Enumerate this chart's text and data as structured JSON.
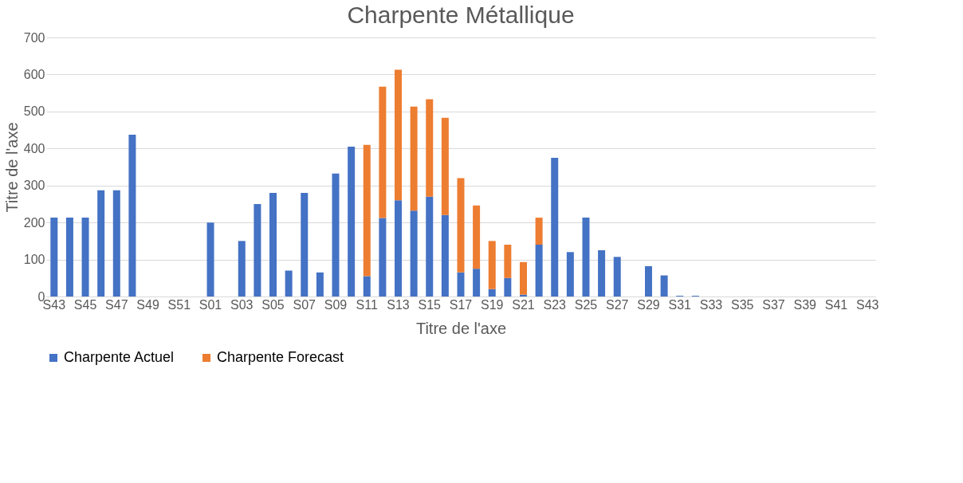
{
  "chart_data": {
    "type": "bar",
    "title": "Charpente Métallique",
    "xlabel": "Titre de l'axe",
    "ylabel": "Titre de l'axe",
    "categories": [
      "S43",
      null,
      "S45",
      null,
      "S47",
      null,
      "S49",
      null,
      "S51",
      null,
      "S01",
      null,
      "S03",
      null,
      "S05",
      null,
      "S07",
      null,
      "S09",
      null,
      "S11",
      null,
      "S13",
      null,
      "S15",
      null,
      "S17",
      null,
      "S19",
      null,
      "S21",
      null,
      "S23",
      null,
      "S25",
      null,
      "S27",
      null,
      "S29",
      null,
      "S31",
      null,
      "S33",
      null,
      "S35",
      null,
      "S37",
      null,
      "S39",
      null,
      "S41",
      null,
      "S43"
    ],
    "series": [
      {
        "name": "Charpente Actuel",
        "color": "#4472c4",
        "values": [
          213,
          213,
          213,
          287,
          287,
          437,
          null,
          null,
          null,
          null,
          200,
          null,
          150,
          250,
          280,
          70,
          280,
          65,
          332,
          405,
          55,
          212,
          260,
          232,
          270,
          220,
          65,
          75,
          20,
          50,
          5,
          140,
          375,
          120,
          213,
          125,
          107,
          null,
          82,
          57,
          2,
          2,
          null,
          null,
          null,
          null,
          null,
          null,
          null,
          null,
          null,
          null,
          null
        ]
      },
      {
        "name": "Charpente Forecast",
        "color": "#ed7d31",
        "values": [
          null,
          null,
          null,
          null,
          null,
          null,
          null,
          null,
          null,
          null,
          null,
          null,
          null,
          null,
          null,
          null,
          null,
          null,
          null,
          null,
          355,
          355,
          353,
          281,
          263,
          263,
          255,
          171,
          130,
          90,
          88,
          73,
          null,
          null,
          null,
          null,
          null,
          null,
          null,
          null,
          null,
          null,
          null,
          null,
          null,
          null,
          null,
          null,
          null,
          null,
          null,
          null,
          null
        ]
      }
    ],
    "stacked": true,
    "ylim": [
      0,
      700
    ],
    "yticks": [
      0,
      100,
      200,
      300,
      400,
      500,
      600,
      700
    ],
    "grid": "y",
    "legend": "bottom"
  }
}
